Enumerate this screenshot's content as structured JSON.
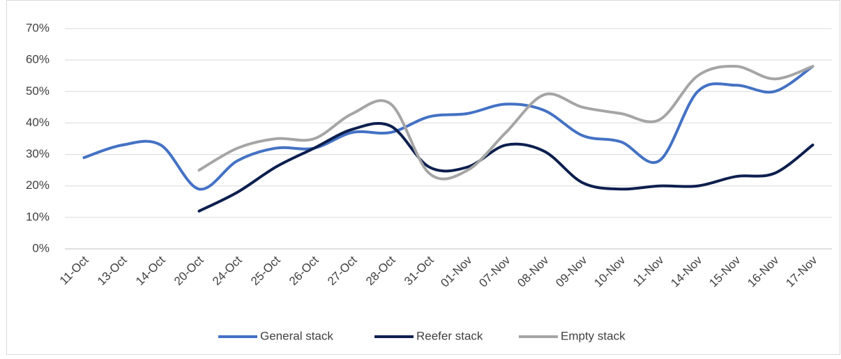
{
  "chart_data": {
    "type": "line",
    "categories": [
      "11-Oct",
      "13-Oct",
      "14-Oct",
      "20-Oct",
      "24-Oct",
      "25-Oct",
      "26-Oct",
      "27-Oct",
      "28-Oct",
      "31-Oct",
      "01-Nov",
      "07-Nov",
      "08-Nov",
      "09-Nov",
      "10-Nov",
      "11-Nov",
      "14-Nov",
      "15-Nov",
      "16-Nov",
      "17-Nov"
    ],
    "series": [
      {
        "name": "General stack",
        "color": "#4472c4",
        "values": [
          29,
          33,
          33,
          19,
          28,
          32,
          32,
          37,
          37,
          42,
          43,
          46,
          44,
          36,
          34,
          28,
          50,
          52,
          50,
          58
        ]
      },
      {
        "name": "Reefer stack",
        "color": "#0c1f4e",
        "values": [
          null,
          null,
          null,
          12,
          18,
          26,
          32,
          38,
          39,
          26,
          26,
          33,
          31,
          21,
          19,
          20,
          20,
          23,
          24,
          33
        ]
      },
      {
        "name": "Empty stack",
        "color": "#a5a5a5",
        "values": [
          null,
          null,
          null,
          25,
          32,
          35,
          35,
          43,
          46,
          24,
          25,
          37,
          49,
          45,
          43,
          41,
          55,
          58,
          54,
          58
        ]
      }
    ],
    "ylim": [
      0,
      70
    ],
    "yticks": [
      {
        "value": 0,
        "label": "0%"
      },
      {
        "value": 10,
        "label": "10%"
      },
      {
        "value": 20,
        "label": "20%"
      },
      {
        "value": 30,
        "label": "30%"
      },
      {
        "value": 40,
        "label": "40%"
      },
      {
        "value": 50,
        "label": "50%"
      },
      {
        "value": 60,
        "label": "60%"
      },
      {
        "value": 70,
        "label": "70%"
      }
    ],
    "grid": true,
    "smooth": true,
    "legend": "bottom"
  }
}
